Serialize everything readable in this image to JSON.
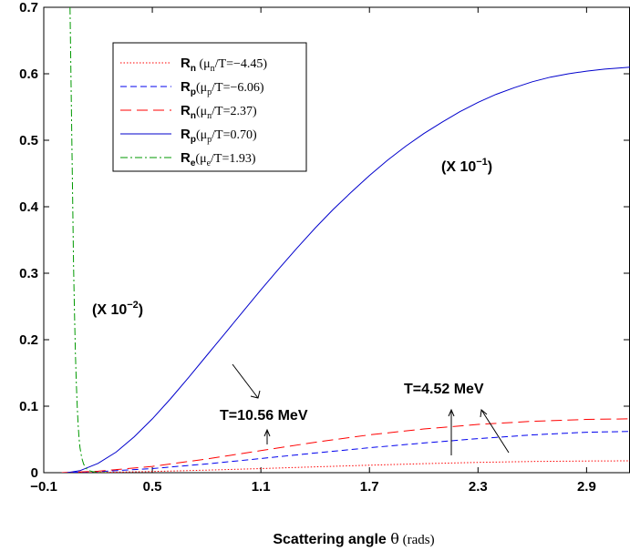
{
  "chart_data": {
    "type": "line",
    "xlabel_main": "Scattering angle ",
    "xlabel_symbol": "θ",
    "xlabel_unit": " (rads)",
    "xlim": [
      -0.1,
      3.14
    ],
    "ylim": [
      0,
      0.7
    ],
    "x_ticks": [
      -0.1,
      0.5,
      1.1,
      1.7,
      2.3,
      2.9
    ],
    "x_tick_labels": [
      "−0.1",
      "0.5",
      "1.1",
      "1.7",
      "2.3",
      "2.9"
    ],
    "y_ticks": [
      0,
      0.1,
      0.2,
      0.3,
      0.4,
      0.5,
      0.6,
      0.7
    ],
    "y_tick_labels": [
      "0",
      "0.1",
      "0.2",
      "0.3",
      "0.4",
      "0.5",
      "0.6",
      "0.7"
    ],
    "grid": false,
    "legend_position": "top-left",
    "series": [
      {
        "legend": {
          "r": "R",
          "r_sub": "n",
          "paren_open": " (",
          "mu": "μ",
          "mu_sub": "n",
          "rest": "/T=−4.45)"
        },
        "color": "#ff0000",
        "dash": "dotted",
        "x": [
          0,
          0.2,
          0.5,
          0.8,
          1.1,
          1.4,
          1.7,
          2.0,
          2.3,
          2.6,
          2.9,
          3.14
        ],
        "y": [
          0,
          0.0004,
          0.0018,
          0.0038,
          0.0062,
          0.0088,
          0.0113,
          0.0136,
          0.0155,
          0.0168,
          0.0176,
          0.0178
        ]
      },
      {
        "legend": {
          "r": "R",
          "r_sub": "p",
          "paren_open": "(",
          "mu": "μ",
          "mu_sub": "p",
          "rest": "/T=−6.06)"
        },
        "color": "#0000ee",
        "dash": "dashed",
        "x": [
          0,
          0.2,
          0.5,
          0.8,
          1.1,
          1.4,
          1.7,
          2.0,
          2.3,
          2.6,
          2.9,
          3.14
        ],
        "y": [
          0,
          0.0015,
          0.0062,
          0.0132,
          0.0212,
          0.0296,
          0.0376,
          0.0446,
          0.0512,
          0.0568,
          0.0608,
          0.062
        ]
      },
      {
        "legend": {
          "r": "R",
          "r_sub": "n",
          "paren_open": "(",
          "mu": "μ",
          "mu_sub": "n",
          "rest": "/T=2.37)"
        },
        "color": "#ff0000",
        "dash": "longdash",
        "x": [
          0,
          0.2,
          0.5,
          0.8,
          1.1,
          1.4,
          1.7,
          2.0,
          2.3,
          2.6,
          2.9,
          3.14
        ],
        "y": [
          0,
          0.0022,
          0.0095,
          0.0205,
          0.0332,
          0.0458,
          0.0568,
          0.0658,
          0.0726,
          0.0772,
          0.0802,
          0.081
        ]
      },
      {
        "legend": {
          "r": "R",
          "r_sub": "p",
          "paren_open": "(",
          "mu": "μ",
          "mu_sub": "p",
          "rest": "/T=0.70)"
        },
        "color": "#0000cc",
        "dash": "solid",
        "x": [
          0.03,
          0.1,
          0.2,
          0.3,
          0.4,
          0.5,
          0.6,
          0.7,
          0.8,
          0.9,
          1.0,
          1.1,
          1.2,
          1.3,
          1.4,
          1.5,
          1.6,
          1.7,
          1.8,
          1.9,
          2.0,
          2.1,
          2.2,
          2.3,
          2.4,
          2.5,
          2.6,
          2.7,
          2.8,
          2.9,
          3.0,
          3.1,
          3.14
        ],
        "y": [
          0,
          0.003,
          0.014,
          0.031,
          0.054,
          0.081,
          0.111,
          0.143,
          0.176,
          0.209,
          0.242,
          0.275,
          0.307,
          0.338,
          0.368,
          0.396,
          0.422,
          0.447,
          0.47,
          0.491,
          0.51,
          0.527,
          0.543,
          0.557,
          0.569,
          0.579,
          0.588,
          0.595,
          0.6,
          0.604,
          0.607,
          0.609,
          0.61
        ]
      },
      {
        "legend": {
          "r": "R",
          "r_sub": "e",
          "paren_open": "(",
          "mu": "μ",
          "mu_sub": "e",
          "rest": "/T=1.93)"
        },
        "color": "#009900",
        "dash": "dashdot",
        "x": [
          0.045,
          0.05,
          0.055,
          0.06,
          0.065,
          0.07,
          0.075,
          0.08,
          0.085,
          0.09,
          0.095,
          0.1,
          0.11,
          0.12,
          0.13,
          0.14,
          0.15,
          0.17,
          0.2,
          0.25
        ],
        "y": [
          0.7,
          0.6,
          0.5,
          0.4,
          0.31,
          0.24,
          0.18,
          0.135,
          0.1,
          0.072,
          0.052,
          0.038,
          0.022,
          0.013,
          0.008,
          0.005,
          0.003,
          0.0015,
          0.0005,
          0
        ]
      }
    ],
    "annotations": {
      "scale_minus1": {
        "base": "(X 10",
        "exp": "−1",
        "close": ")"
      },
      "scale_minus2": {
        "base": "(X 10",
        "exp": "−2",
        "close": ")"
      },
      "t_high": "T=10.56 MeV",
      "t_low": "T=4.52 MeV"
    }
  }
}
